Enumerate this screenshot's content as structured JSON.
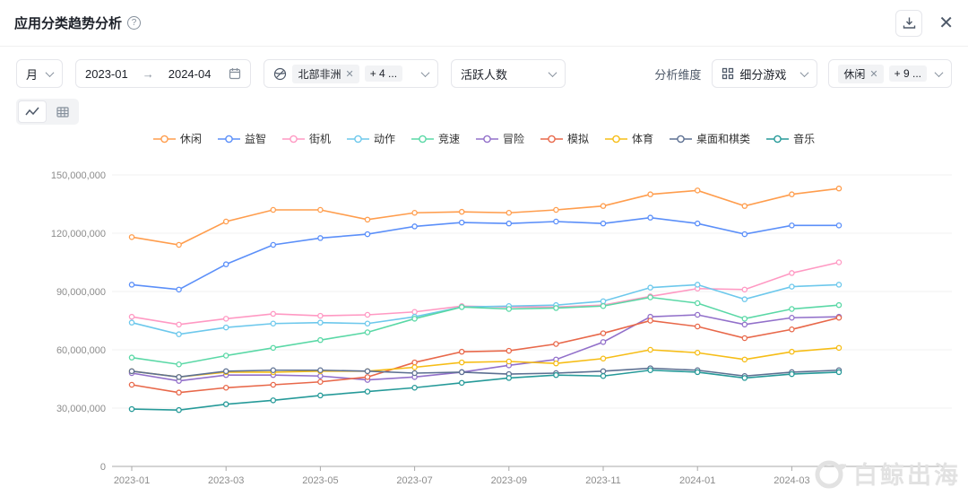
{
  "header": {
    "title": "应用分类趋势分析"
  },
  "toolbar": {
    "download_icon": "download",
    "close_icon": "close"
  },
  "filters": {
    "granularity": {
      "value": "月"
    },
    "date_range": {
      "start": "2023-01",
      "arrow": "→",
      "end": "2024-04"
    },
    "region": {
      "tags": [
        {
          "label": "北部非洲"
        },
        {
          "label": "+ 4 ..."
        }
      ]
    },
    "metric": {
      "value": "活跃人数"
    },
    "dimension_label": "分析维度",
    "dimension": {
      "value": "细分游戏"
    },
    "category": {
      "tags": [
        {
          "label": "休闲"
        },
        {
          "label": "+ 9 ..."
        }
      ]
    }
  },
  "view_toggle": {
    "active": "line-chart",
    "options": [
      "line-chart",
      "table"
    ]
  },
  "watermark": {
    "text": "白鲸出海"
  },
  "chart_data": {
    "type": "line",
    "x": [
      "2023-01",
      "2023-02",
      "2023-03",
      "2023-04",
      "2023-05",
      "2023-06",
      "2023-07",
      "2023-08",
      "2023-09",
      "2023-10",
      "2023-11",
      "2023-12",
      "2024-01",
      "2024-02",
      "2024-03",
      "2024-04"
    ],
    "x_tick_labels": [
      "2023-01",
      "2023-03",
      "2023-05",
      "2023-07",
      "2023-09",
      "2023-11",
      "2024-01",
      "2024-03"
    ],
    "y_ticks": [
      0,
      30000000,
      60000000,
      90000000,
      120000000,
      150000000
    ],
    "ylim": [
      0,
      150000000
    ],
    "grid": true,
    "legend_position": "top",
    "values_unit": "millions",
    "series": [
      {
        "name": "休闲",
        "color": "#ff9d4d",
        "values": [
          118,
          114,
          126,
          132,
          132,
          127,
          130.5,
          131,
          130.5,
          132,
          134,
          140,
          142,
          134,
          140,
          143
        ]
      },
      {
        "name": "益智",
        "color": "#5b8ff9",
        "values": [
          93.5,
          91,
          104,
          114,
          117.5,
          119.5,
          123.5,
          125.5,
          125,
          126,
          125,
          128,
          125,
          119.5,
          124,
          124
        ]
      },
      {
        "name": "街机",
        "color": "#ff99c3",
        "values": [
          77,
          73,
          76,
          78.5,
          77.5,
          78,
          79.5,
          82.5,
          82,
          82,
          83,
          87.5,
          91.5,
          91,
          99.5,
          105
        ]
      },
      {
        "name": "动作",
        "color": "#6dc8ec",
        "values": [
          74,
          68,
          71.5,
          73.5,
          74,
          73.5,
          77,
          82,
          82.5,
          83,
          85,
          92,
          93.5,
          86,
          92.5,
          93.5
        ]
      },
      {
        "name": "竞速",
        "color": "#5ad8a6",
        "values": [
          56,
          52.5,
          57,
          61,
          65,
          69,
          76,
          82,
          81,
          81.5,
          82.5,
          87,
          84,
          76,
          81,
          83
        ]
      },
      {
        "name": "冒险",
        "color": "#9270ca",
        "values": [
          48,
          44,
          47,
          47,
          46.5,
          44.5,
          46,
          48.5,
          52,
          55,
          64,
          77,
          78,
          73,
          76.5,
          77
        ]
      },
      {
        "name": "模拟",
        "color": "#e8684a",
        "values": [
          42,
          38,
          40.5,
          42,
          43.5,
          46,
          53.5,
          59,
          59.5,
          63,
          68.5,
          75,
          72,
          66,
          70.5,
          76.5
        ]
      },
      {
        "name": "体育",
        "color": "#f6bd16",
        "values": [
          49,
          46,
          48.5,
          48.5,
          49,
          49,
          51,
          53.5,
          54,
          53,
          55.5,
          60,
          58.5,
          55,
          59,
          61
        ]
      },
      {
        "name": "桌面和棋类",
        "color": "#5d7092",
        "values": [
          49,
          46,
          49,
          49.5,
          49.5,
          49,
          48,
          48.5,
          47.5,
          48,
          49,
          50.5,
          49.5,
          46.5,
          48.5,
          49.5
        ]
      },
      {
        "name": "音乐",
        "color": "#269a99",
        "values": [
          29.5,
          29,
          32,
          34,
          36.5,
          38.5,
          40.5,
          43,
          45.5,
          47,
          46.5,
          49.5,
          48.5,
          45.5,
          47.5,
          48.5
        ]
      }
    ]
  }
}
